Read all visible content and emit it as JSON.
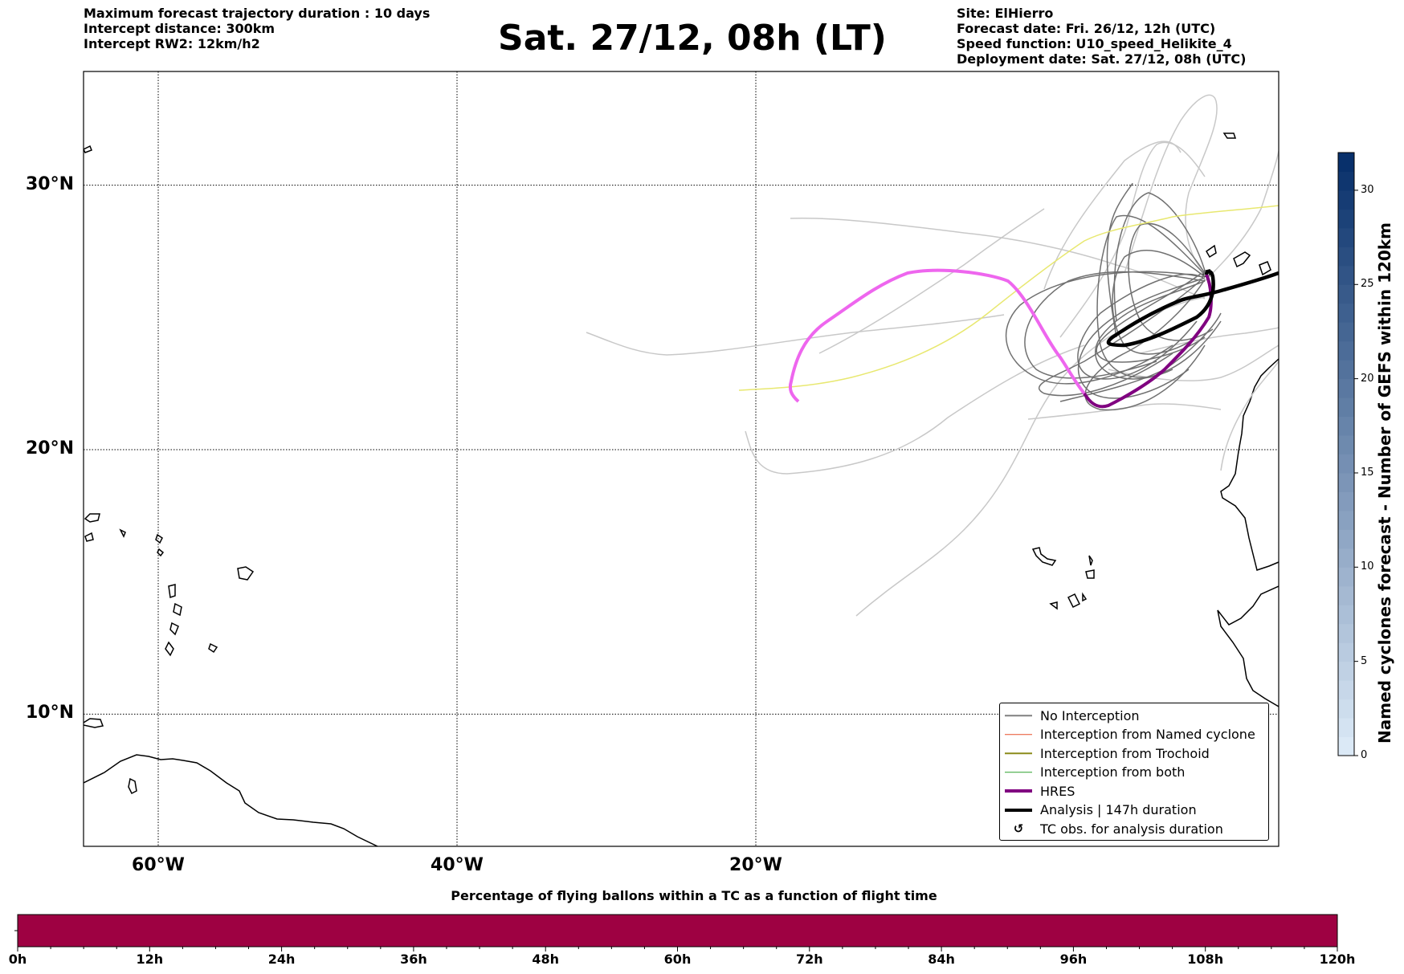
{
  "header_left": {
    "line1": "Maximum forecast trajectory duration : 10 days",
    "line2": "Intercept distance: 300km",
    "line3": "Intercept RW2: 12km/h2"
  },
  "title": "Sat. 27/12, 08h (LT)",
  "header_right": {
    "line1": "Site: ElHierro",
    "line2": "Forecast date: Fri. 26/12, 12h (UTC)",
    "line3": "Speed function: U10_speed_Helikite_4",
    "line4": "Deployment date: Sat. 27/12, 08h (UTC)"
  },
  "map": {
    "lon_range": [
      -65,
      15
    ],
    "lat_range": [
      5,
      34.3
    ],
    "lon_ticks": [
      {
        "value": -60,
        "label": "60°W"
      },
      {
        "value": -40,
        "label": "40°W"
      },
      {
        "value": -20,
        "label": "20°W"
      }
    ],
    "lat_ticks": [
      {
        "value": 30,
        "label": "30°N"
      },
      {
        "value": 20,
        "label": "20°N"
      },
      {
        "value": 10,
        "label": "10°N"
      }
    ],
    "grid": "dotted"
  },
  "legend": {
    "items": [
      {
        "label": "No Interception",
        "color": "#808080",
        "style": "thin"
      },
      {
        "label": "Interception from Named cyclone",
        "color": "#e8502a",
        "style": "thin"
      },
      {
        "label": "Interception from Trochoid",
        "color": "#8b8b1a",
        "style": "thin"
      },
      {
        "label": "Interception from both",
        "color": "#2ca02c",
        "style": "thin"
      },
      {
        "label": "HRES",
        "color": "#800080",
        "style": "thick"
      },
      {
        "label": "Analysis | 147h duration",
        "color": "#000000",
        "style": "thick"
      },
      {
        "label": "TC obs. for analysis duration",
        "color": "#000000",
        "style": "marker"
      }
    ]
  },
  "colorbar": {
    "title": "Named cyclones forecast - Number of GEFS within 120km",
    "ticks": [
      "0",
      "5",
      "10",
      "15",
      "20",
      "25",
      "30"
    ],
    "range": [
      0,
      32
    ]
  },
  "flight_bar": {
    "title": "Percentage of flying ballons within a TC as a function of flight time",
    "ticks": [
      "0h",
      "12h",
      "24h",
      "36h",
      "48h",
      "60h",
      "72h",
      "84h",
      "96h",
      "108h",
      "120h"
    ],
    "fill_color": "#9e0142"
  }
}
